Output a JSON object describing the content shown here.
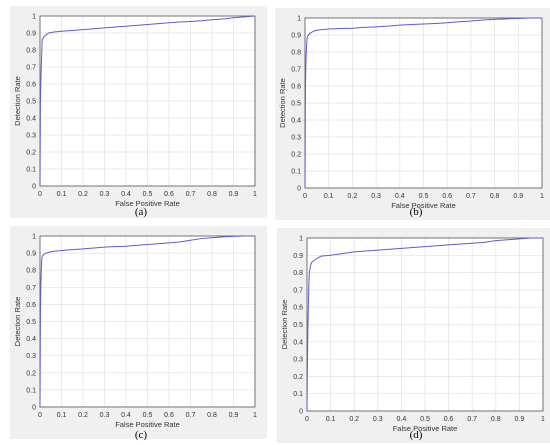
{
  "chart_data": [
    {
      "type": "line",
      "caption": "(a)",
      "xlabel": "False Positive Rate",
      "ylabel": "Detection Rate",
      "xlim": [
        0,
        1
      ],
      "ylim": [
        0,
        1
      ],
      "x_ticks": [
        "0",
        "0.1",
        "0.2",
        "0.3",
        "0.4",
        "0.5",
        "0.6",
        "0.7",
        "0.8",
        "0.9",
        "1"
      ],
      "y_ticks": [
        "0",
        "0.1",
        "0.2",
        "0.3",
        "0.4",
        "0.5",
        "0.6",
        "0.7",
        "0.8",
        "0.9",
        "1"
      ],
      "grid": true,
      "color": "#5b5bd6",
      "series": [
        {
          "x": [
            0,
            0.002,
            0.004,
            0.006,
            0.008,
            0.01,
            0.02,
            0.04,
            0.06,
            0.1,
            0.15,
            0.2,
            0.25,
            0.3,
            0.35,
            0.4,
            0.45,
            0.5,
            0.55,
            0.6,
            0.65,
            0.7,
            0.75,
            0.8,
            0.85,
            0.9,
            0.95,
            1.0
          ],
          "y": [
            0,
            0.5,
            0.62,
            0.7,
            0.78,
            0.86,
            0.88,
            0.9,
            0.905,
            0.91,
            0.915,
            0.92,
            0.925,
            0.93,
            0.935,
            0.94,
            0.945,
            0.95,
            0.955,
            0.96,
            0.965,
            0.968,
            0.972,
            0.978,
            0.982,
            0.99,
            0.995,
            1.0
          ]
        }
      ]
    },
    {
      "type": "line",
      "caption": "(b)",
      "xlabel": "False Positive Rate",
      "ylabel": "Detection Rate",
      "xlim": [
        0,
        1
      ],
      "ylim": [
        0,
        1
      ],
      "x_ticks": [
        "0",
        "0.1",
        "0.2",
        "0.3",
        "0.4",
        "0.5",
        "0.6",
        "0.7",
        "0.8",
        "0.9",
        "1"
      ],
      "y_ticks": [
        "0",
        "0.1",
        "0.2",
        "0.3",
        "0.4",
        "0.5",
        "0.6",
        "0.7",
        "0.8",
        "0.9",
        "1"
      ],
      "grid": true,
      "color": "#5b5bd6",
      "series": [
        {
          "x": [
            0,
            0.002,
            0.004,
            0.006,
            0.008,
            0.01,
            0.02,
            0.04,
            0.06,
            0.1,
            0.15,
            0.2,
            0.25,
            0.3,
            0.35,
            0.4,
            0.45,
            0.5,
            0.55,
            0.6,
            0.65,
            0.7,
            0.75,
            0.8,
            0.85,
            0.9,
            0.95,
            1.0
          ],
          "y": [
            0,
            0.6,
            0.75,
            0.82,
            0.87,
            0.89,
            0.91,
            0.925,
            0.93,
            0.935,
            0.938,
            0.94,
            0.945,
            0.948,
            0.952,
            0.958,
            0.962,
            0.965,
            0.968,
            0.972,
            0.978,
            0.982,
            0.988,
            0.992,
            0.995,
            0.998,
            1.0,
            1.0
          ]
        }
      ]
    },
    {
      "type": "line",
      "caption": "(c)",
      "xlabel": "False Positive Rate",
      "ylabel": "Detection Rate",
      "xlim": [
        0,
        1
      ],
      "ylim": [
        0,
        1
      ],
      "x_ticks": [
        "0",
        "0.1",
        "0.2",
        "0.3",
        "0.4",
        "0.5",
        "0.6",
        "0.7",
        "0.8",
        "0.9",
        "1"
      ],
      "y_ticks": [
        "0",
        "0.1",
        "0.2",
        "0.3",
        "0.4",
        "0.5",
        "0.6",
        "0.7",
        "0.8",
        "0.9",
        "1"
      ],
      "grid": true,
      "color": "#5b5bd6",
      "series": [
        {
          "x": [
            0,
            0.002,
            0.004,
            0.006,
            0.008,
            0.01,
            0.02,
            0.04,
            0.06,
            0.1,
            0.15,
            0.2,
            0.25,
            0.3,
            0.35,
            0.4,
            0.45,
            0.5,
            0.55,
            0.6,
            0.65,
            0.7,
            0.75,
            0.8,
            0.85,
            0.9,
            0.95,
            1.0
          ],
          "y": [
            0,
            0.55,
            0.72,
            0.8,
            0.86,
            0.88,
            0.895,
            0.905,
            0.91,
            0.915,
            0.92,
            0.925,
            0.93,
            0.935,
            0.938,
            0.94,
            0.945,
            0.95,
            0.955,
            0.96,
            0.965,
            0.975,
            0.985,
            0.99,
            0.995,
            0.998,
            1.0,
            1.0
          ]
        }
      ]
    },
    {
      "type": "line",
      "caption": "(d)",
      "xlabel": "False Positive Rate",
      "ylabel": "Detection Rate",
      "xlim": [
        0,
        1
      ],
      "ylim": [
        0,
        1
      ],
      "x_ticks": [
        "0",
        "0.1",
        "0.2",
        "0.3",
        "0.4",
        "0.5",
        "0.6",
        "0.7",
        "0.8",
        "0.9",
        "1"
      ],
      "y_ticks": [
        "0",
        "0.1",
        "0.2",
        "0.3",
        "0.4",
        "0.5",
        "0.6",
        "0.7",
        "0.8",
        "0.9",
        "1"
      ],
      "grid": true,
      "color": "#5b5bd6",
      "series": [
        {
          "x": [
            0,
            0.002,
            0.004,
            0.006,
            0.008,
            0.01,
            0.015,
            0.02,
            0.04,
            0.06,
            0.1,
            0.15,
            0.2,
            0.25,
            0.3,
            0.35,
            0.4,
            0.45,
            0.5,
            0.55,
            0.6,
            0.65,
            0.7,
            0.75,
            0.8,
            0.85,
            0.9,
            0.95,
            1.0
          ],
          "y": [
            0,
            0.3,
            0.5,
            0.62,
            0.74,
            0.8,
            0.84,
            0.86,
            0.88,
            0.895,
            0.9,
            0.91,
            0.92,
            0.925,
            0.93,
            0.935,
            0.94,
            0.945,
            0.95,
            0.955,
            0.96,
            0.965,
            0.97,
            0.975,
            0.985,
            0.99,
            0.995,
            1.0,
            1.0
          ]
        }
      ]
    }
  ]
}
